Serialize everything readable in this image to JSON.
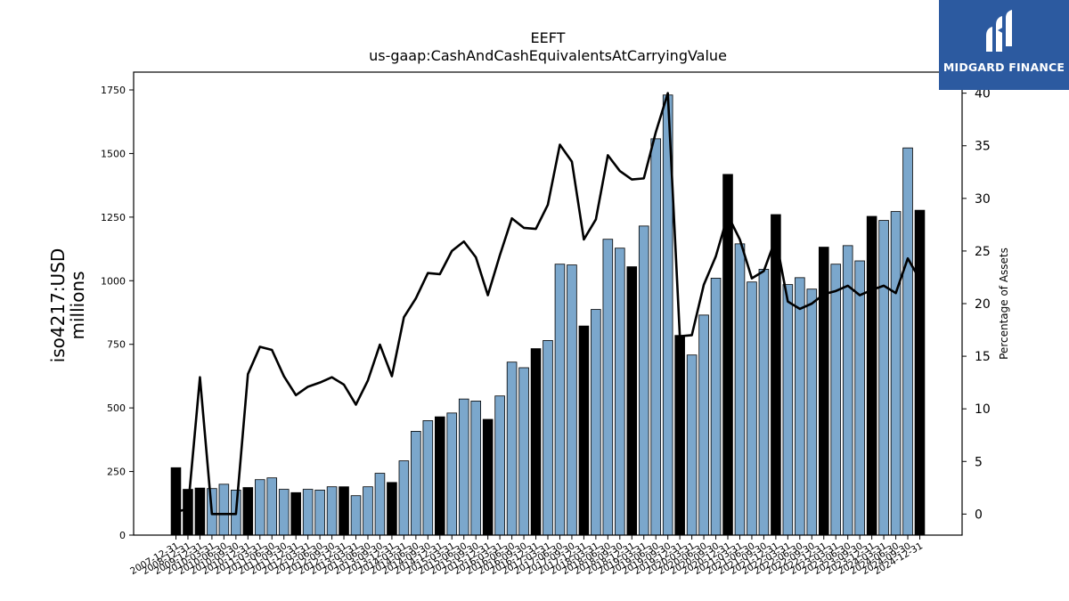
{
  "chart_data": {
    "type": "bar",
    "title": "EEFT",
    "subtitle": "us-gaap:CashAndCashEquivalentsAtCarryingValue",
    "ylabel_line1": "iso4217:USD",
    "ylabel_line2": "millions",
    "y2label": "Percentage of Assets",
    "ylim": [
      0,
      1820
    ],
    "y2lim": [
      -2,
      42
    ],
    "yticks": [
      0,
      250,
      500,
      750,
      1000,
      1250,
      1500,
      1750
    ],
    "y2ticks": [
      0,
      5,
      10,
      15,
      20,
      25,
      30,
      35,
      40
    ],
    "grid": false,
    "colors": {
      "annual": "#000000",
      "quarterly": "#7ba7cc",
      "line": "#000000"
    },
    "categories": [
      "2007-12-31",
      "2008-12-31",
      "2009-12-31",
      "2010-03-31",
      "2010-06-30",
      "2010-09-30",
      "2010-12-31",
      "2011-03-31",
      "2011-06-30",
      "2011-09-30",
      "2011-12-31",
      "2012-03-31",
      "2012-06-30",
      "2012-09-30",
      "2012-12-31",
      "2013-03-31",
      "2013-06-30",
      "2013-09-30",
      "2013-12-31",
      "2014-03-31",
      "2014-06-30",
      "2014-09-30",
      "2014-12-31",
      "2015-03-31",
      "2015-06-30",
      "2015-09-30",
      "2015-12-31",
      "2016-03-31",
      "2016-06-30",
      "2016-09-30",
      "2016-12-31",
      "2017-03-31",
      "2017-06-30",
      "2017-09-30",
      "2017-12-31",
      "2018-03-31",
      "2018-06-30",
      "2018-09-30",
      "2018-12-31",
      "2019-03-31",
      "2019-06-30",
      "2019-09-30",
      "2019-12-31",
      "2020-03-31",
      "2020-06-30",
      "2020-09-30",
      "2020-12-31",
      "2021-03-31",
      "2021-06-30",
      "2021-09-30",
      "2021-12-31",
      "2022-03-31",
      "2022-06-30",
      "2022-09-30",
      "2022-12-31",
      "2023-03-31",
      "2023-06-30",
      "2023-09-30",
      "2023-12-31",
      "2024-03-31",
      "2024-06-30",
      "2024-09-30",
      "2024-12-31"
    ],
    "values": [
      265,
      180,
      185,
      183,
      200,
      177,
      187,
      218,
      225,
      180,
      167,
      180,
      177,
      190,
      190,
      155,
      190,
      243,
      207,
      292,
      408,
      450,
      465,
      480,
      535,
      527,
      455,
      547,
      680,
      658,
      733,
      765,
      1065,
      1062,
      822,
      887,
      1163,
      1128,
      1055,
      1215,
      1558,
      1730,
      785,
      708,
      865,
      1010,
      1418,
      1145,
      995,
      1045,
      1260,
      985,
      1012,
      967,
      1132,
      1065,
      1138,
      1078,
      1253,
      1237,
      1272,
      1522,
      1277
    ],
    "annual": [
      true,
      true,
      true,
      false,
      false,
      false,
      true,
      false,
      false,
      false,
      true,
      false,
      false,
      false,
      true,
      false,
      false,
      false,
      true,
      false,
      false,
      false,
      true,
      false,
      false,
      false,
      true,
      false,
      false,
      false,
      true,
      false,
      false,
      false,
      true,
      false,
      false,
      false,
      true,
      false,
      false,
      false,
      true,
      false,
      false,
      false,
      true,
      false,
      false,
      false,
      true,
      false,
      false,
      false,
      true,
      false,
      false,
      false,
      true,
      false,
      false,
      false,
      true
    ],
    "pct_assets": [
      0.2,
      0.5,
      13.0,
      0.0,
      0.0,
      0.0,
      13.3,
      15.9,
      15.6,
      13.1,
      11.3,
      12.1,
      12.5,
      13.0,
      12.3,
      10.4,
      12.7,
      16.1,
      13.1,
      18.7,
      20.5,
      22.9,
      22.8,
      25.0,
      25.9,
      24.4,
      20.8,
      24.6,
      28.1,
      27.2,
      27.1,
      29.4,
      35.1,
      33.5,
      26.1,
      28.0,
      34.1,
      32.6,
      31.8,
      31.9,
      36.3,
      40.0,
      16.9,
      17.0,
      21.8,
      24.5,
      28.4,
      26.1,
      22.4,
      23.1,
      26.2,
      20.2,
      19.5,
      20.0,
      20.9,
      21.2,
      21.7,
      20.8,
      21.3,
      21.7,
      21.0,
      24.3,
      22.3
    ]
  },
  "logo": {
    "text": "MIDGARD FINANCE"
  }
}
